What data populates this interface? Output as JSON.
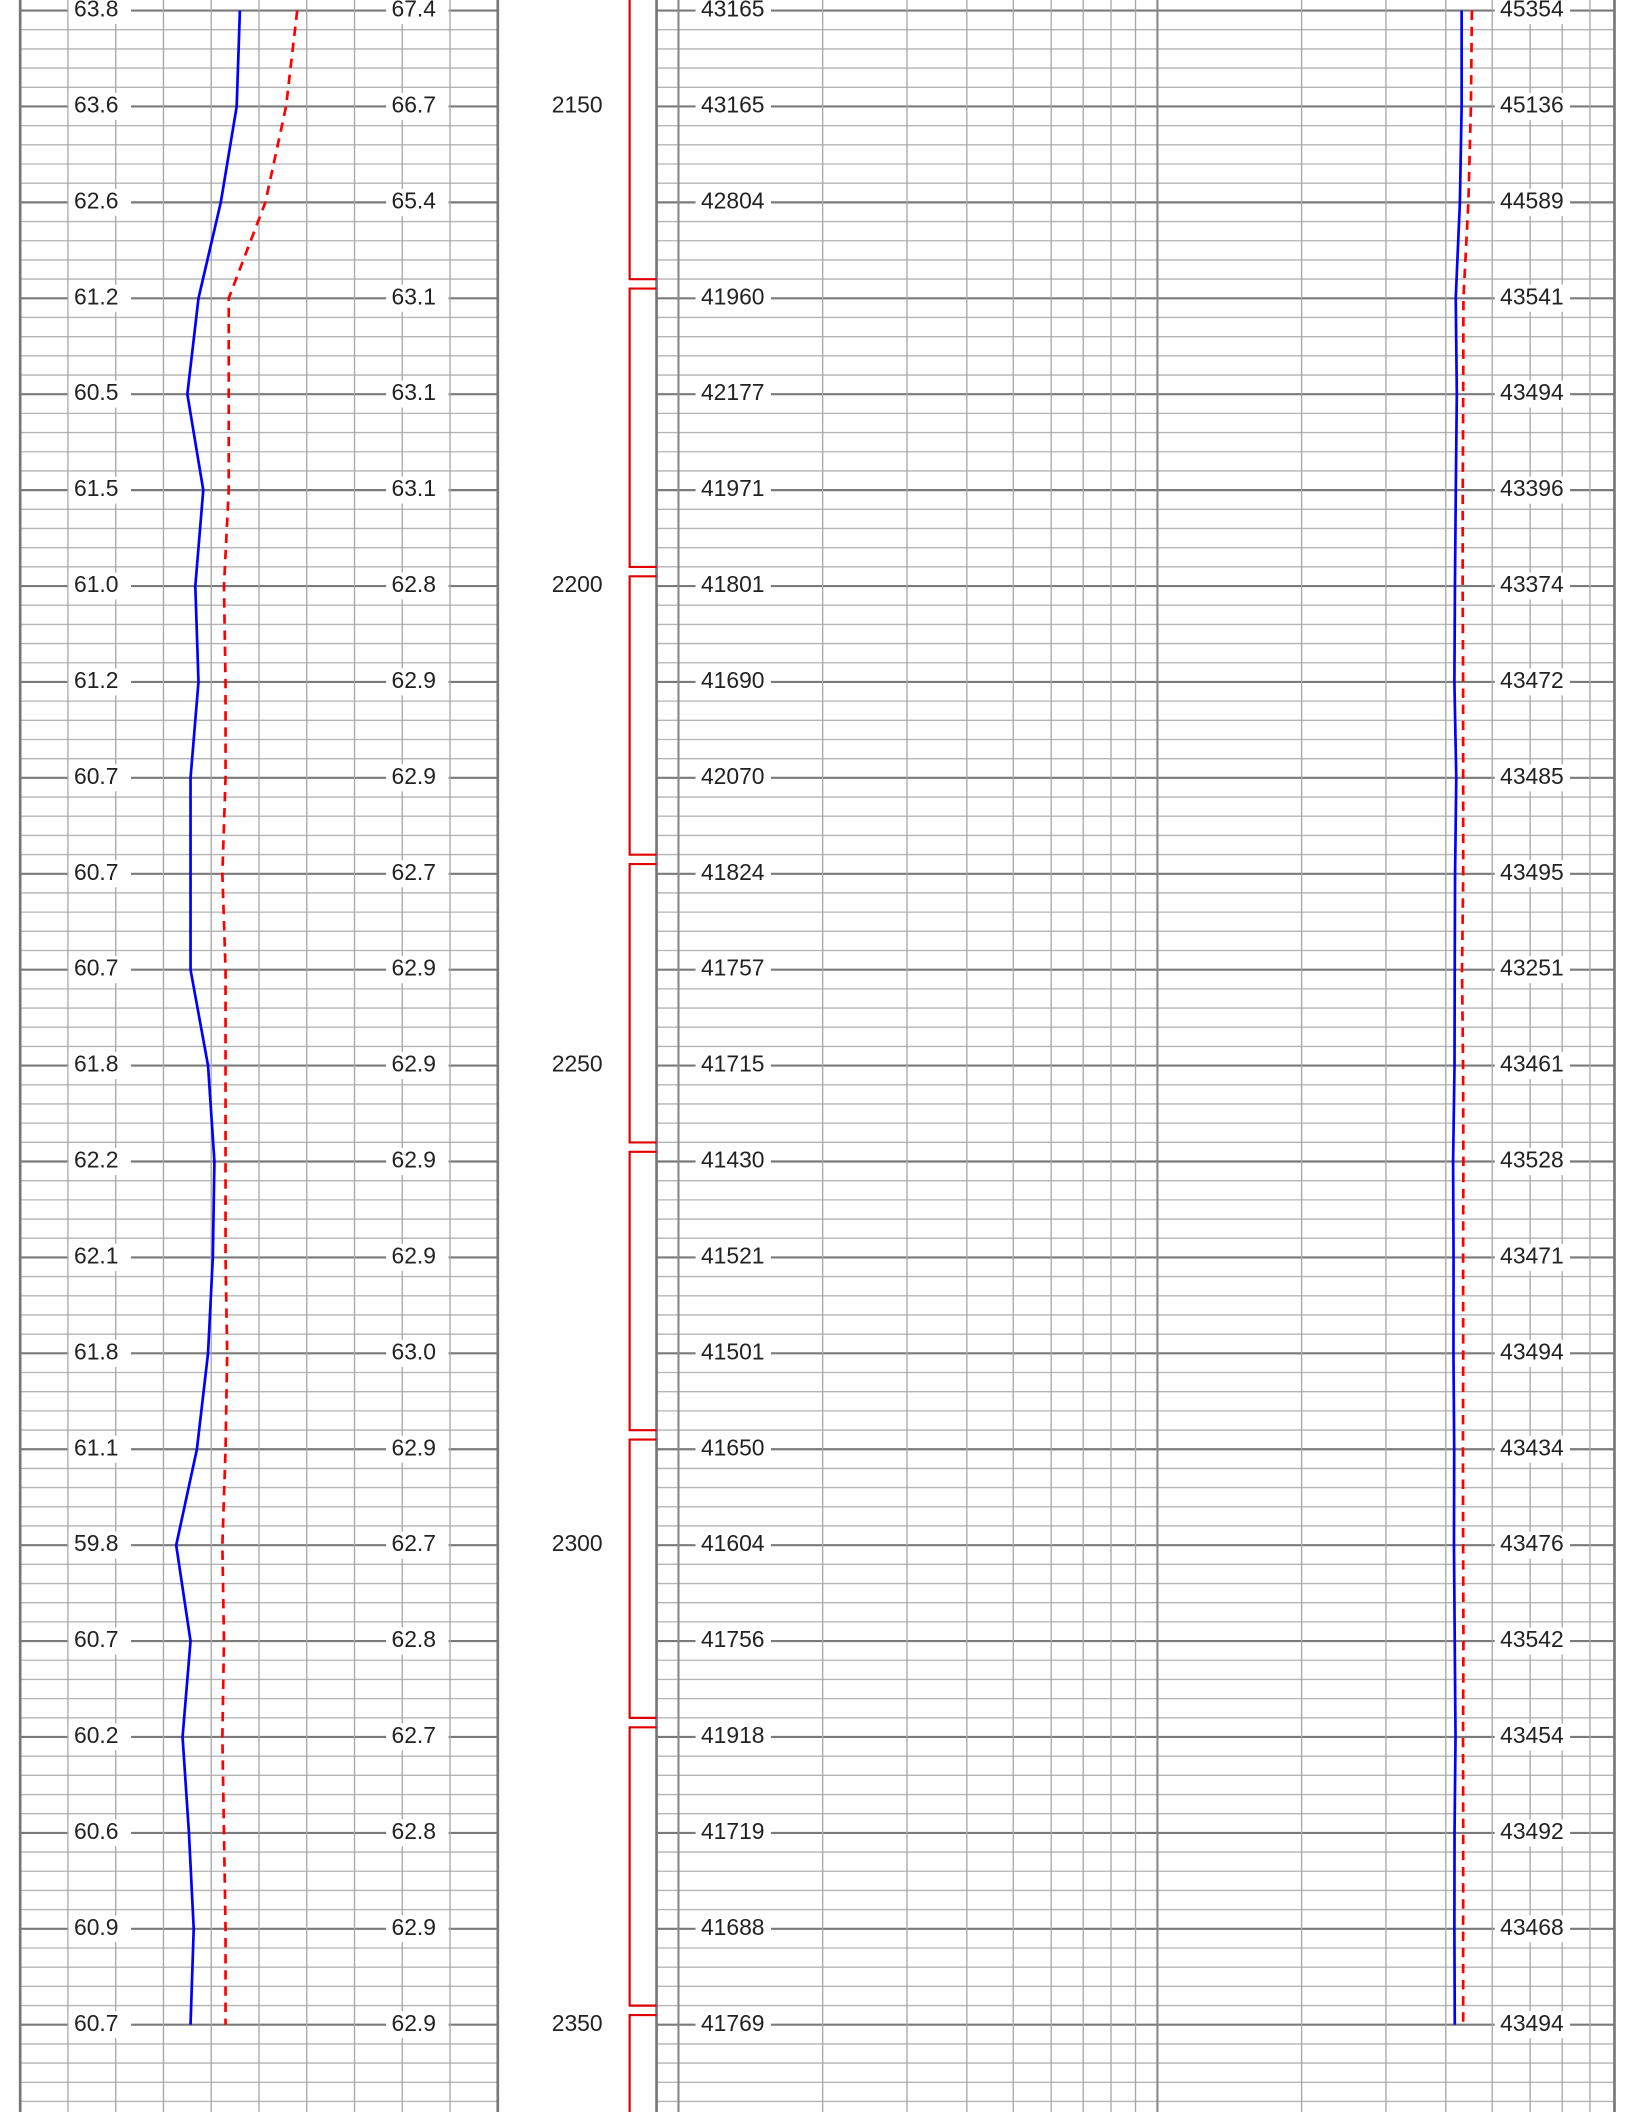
{
  "chart_data": {
    "type": "well-log",
    "ylim": [
      2138.9,
      2359.1
    ],
    "depths": [
      2140,
      2150,
      2160,
      2170,
      2180,
      2190,
      2200,
      2210,
      2220,
      2230,
      2240,
      2250,
      2260,
      2270,
      2280,
      2290,
      2300,
      2310,
      2320,
      2330,
      2340,
      2350
    ],
    "yminor": [
      2140,
      2142,
      2144,
      2146,
      2148,
      2150,
      2152,
      2154,
      2156,
      2158,
      2160,
      2162,
      2164,
      2166,
      2168,
      2170,
      2172,
      2174,
      2176,
      2178,
      2180,
      2182,
      2184,
      2186,
      2188,
      2190,
      2192,
      2194,
      2196,
      2198,
      2200,
      2202,
      2204,
      2206,
      2208,
      2210,
      2212,
      2214,
      2216,
      2218,
      2220,
      2222,
      2224,
      2226,
      2228,
      2230,
      2232,
      2234,
      2236,
      2238,
      2240,
      2242,
      2244,
      2246,
      2248,
      2250,
      2252,
      2254,
      2256,
      2258,
      2260,
      2262,
      2264,
      2266,
      2268,
      2270,
      2272,
      2274,
      2276,
      2278,
      2280,
      2282,
      2284,
      2286,
      2288,
      2290,
      2292,
      2294,
      2296,
      2298,
      2300,
      2302,
      2304,
      2306,
      2308,
      2310,
      2312,
      2314,
      2316,
      2318,
      2320,
      2322,
      2324,
      2326,
      2328,
      2330,
      2332,
      2334,
      2336,
      2338,
      2340,
      2342,
      2344,
      2346,
      2348,
      2350,
      2352,
      2354,
      2356,
      2358
    ],
    "depth_labels": [
      2150,
      2200,
      2250,
      2300,
      2350
    ],
    "interval_breaks": [
      2168.5,
      2198.5,
      2228.5,
      2258.5,
      2288.5,
      2318.5,
      2348.5
    ],
    "interval_color": "#e00000",
    "tracks": [
      {
        "log": false,
        "xlim": [
          50,
          80
        ],
        "xticks": [
          50,
          53,
          56,
          59,
          62,
          65,
          68,
          71,
          74,
          77,
          80
        ],
        "series": [
          {
            "color": "#0000ff",
            "dash": false,
            "values": [
              63.8,
              63.6,
              62.6,
              61.2,
              60.5,
              61.5,
              61.0,
              61.2,
              60.7,
              60.7,
              60.7,
              61.8,
              62.2,
              62.1,
              61.8,
              61.1,
              59.8,
              60.7,
              60.2,
              60.6,
              60.9,
              60.7
            ],
            "value_labels": [
              "63.8",
              "63.6",
              "62.6",
              "61.2",
              "60.5",
              "61.5",
              "61.0",
              "61.2",
              "60.7",
              "60.7",
              "60.7",
              "61.8",
              "62.2",
              "62.1",
              "61.8",
              "61.1",
              "59.8",
              "60.7",
              "60.2",
              "60.6",
              "60.9",
              "60.7"
            ]
          },
          {
            "color": "#ff0000",
            "dash": true,
            "values": [
              67.4,
              66.7,
              65.4,
              63.1,
              63.1,
              63.1,
              62.8,
              62.9,
              62.9,
              62.7,
              62.9,
              62.9,
              62.9,
              62.9,
              63.0,
              62.9,
              62.7,
              62.8,
              62.7,
              62.8,
              62.9,
              62.9
            ],
            "value_labels": [
              "67.4",
              "66.7",
              "65.4",
              "63.1",
              "63.1",
              "63.1",
              "62.8",
              "62.9",
              "62.9",
              "62.7",
              "62.9",
              "62.9",
              "62.9",
              "62.9",
              "63.0",
              "62.9",
              "62.7",
              "62.8",
              "62.7",
              "62.8",
              "62.9",
              "62.9"
            ]
          }
        ]
      },
      {
        "log": true,
        "xlim": [
          900,
          90000
        ],
        "xticks": [
          1000,
          2000,
          3000,
          4000,
          5000,
          6000,
          7000,
          8000,
          9000,
          10000,
          20000,
          30000,
          40000,
          50000,
          60000,
          70000,
          80000,
          90000
        ],
        "series": [
          {
            "color": "#0000ff",
            "dash": false,
            "values": [
              43165,
              43165,
              42804,
              41960,
              42177,
              41971,
              41801,
              41690,
              42070,
              41824,
              41757,
              41715,
              41430,
              41521,
              41501,
              41650,
              41604,
              41756,
              41918,
              41719,
              41688,
              41769
            ]
          },
          {
            "color": "#ff0000",
            "dash": true,
            "values": [
              45354,
              45136,
              44589,
              43541,
              43494,
              43396,
              43374,
              43472,
              43485,
              43495,
              43251,
              43461,
              43528,
              43471,
              43494,
              43434,
              43476,
              43542,
              43454,
              43492,
              43468,
              43494
            ]
          }
        ]
      }
    ]
  }
}
